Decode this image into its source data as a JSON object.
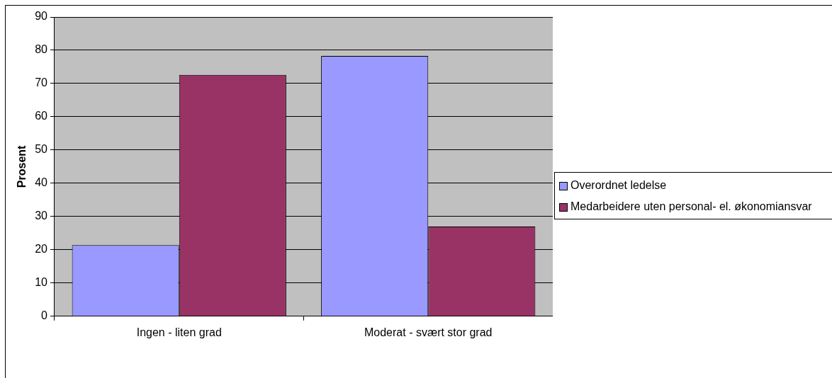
{
  "chart_data": {
    "type": "bar",
    "ylabel": "Prosent",
    "categories": [
      "Ingen - liten grad",
      "Moderat - svært stor grad"
    ],
    "series": [
      {
        "name": "Overordnet ledelse",
        "color": "#9999ff",
        "values": [
          21.4,
          78.3
        ]
      },
      {
        "name": "Medarbeidere uten personal- el. økonomiansvar",
        "color": "#993366",
        "values": [
          72.6,
          27.0
        ]
      }
    ],
    "ylim": [
      0,
      90
    ],
    "yticks": [
      0,
      10,
      20,
      30,
      40,
      50,
      60,
      70,
      80,
      90
    ],
    "grid": "y",
    "legend": "right"
  }
}
